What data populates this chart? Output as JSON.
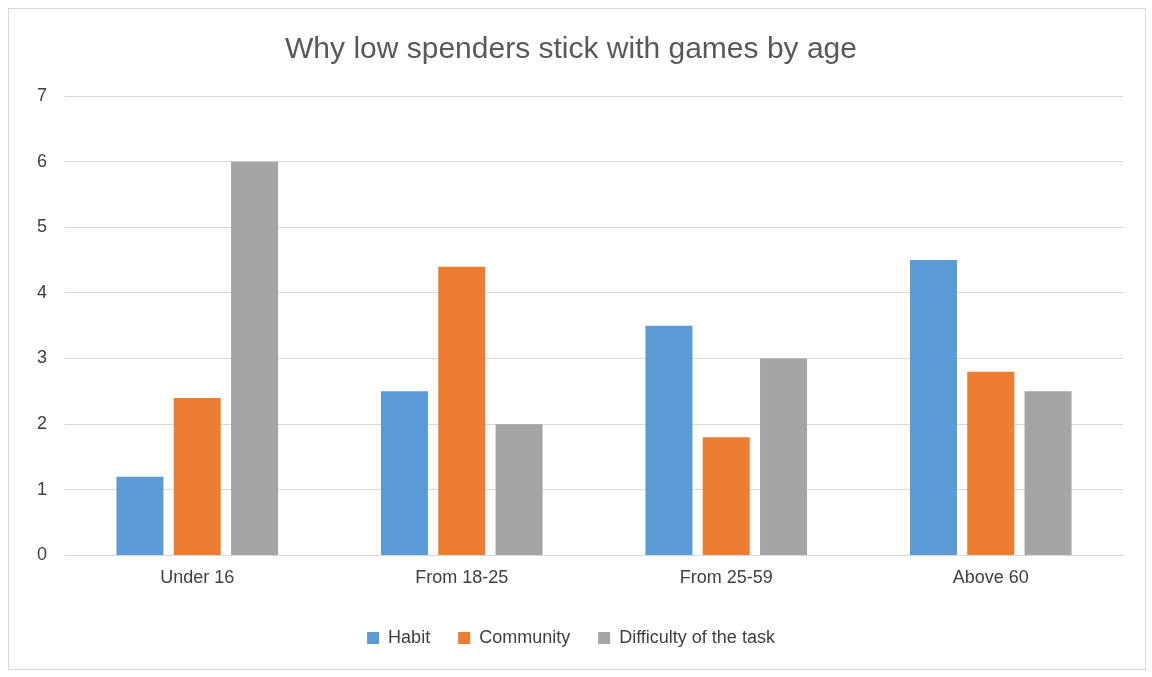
{
  "chart_data": {
    "type": "bar",
    "title": "Why low spenders stick with games by age",
    "categories": [
      "Under 16",
      "From 18-25",
      "From 25-59",
      "Above 60"
    ],
    "series": [
      {
        "name": "Habit",
        "color": "#5b9bd5",
        "values": [
          1.2,
          2.5,
          3.5,
          4.5
        ]
      },
      {
        "name": "Community",
        "color": "#ed7d31",
        "values": [
          2.4,
          4.4,
          1.8,
          2.8
        ]
      },
      {
        "name": "Difficulty of the task",
        "color": "#a5a5a5",
        "values": [
          6,
          2,
          3,
          2.5
        ]
      }
    ],
    "ylim": [
      0,
      7
    ],
    "yticks": [
      0,
      1,
      2,
      3,
      4,
      5,
      6,
      7
    ],
    "grid": "y",
    "legend": "bottom"
  }
}
